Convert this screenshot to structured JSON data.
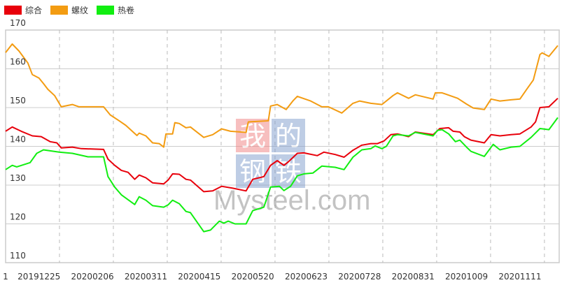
{
  "chart_data": {
    "type": "line",
    "title": "",
    "xlabel": "",
    "ylabel": "",
    "ylim": [
      110,
      170
    ],
    "yticks": [
      110,
      120,
      130,
      140,
      150,
      160,
      170
    ],
    "xlim": [
      0,
      248
    ],
    "xtick_labels": [
      {
        "x": 0,
        "label": "1"
      },
      {
        "x": 15,
        "label": "20191225"
      },
      {
        "x": 39,
        "label": "20200206"
      },
      {
        "x": 63,
        "label": "20200311"
      },
      {
        "x": 87,
        "label": "20200415"
      },
      {
        "x": 111,
        "label": "20200520"
      },
      {
        "x": 135,
        "label": "20200623"
      },
      {
        "x": 159,
        "label": "20200728"
      },
      {
        "x": 183,
        "label": "20200831"
      },
      {
        "x": 207,
        "label": "20201009"
      },
      {
        "x": 231,
        "label": "20201111"
      }
    ],
    "grid": true,
    "legend_position": "top-left",
    "series": [
      {
        "name": "综合",
        "color": "#e8000b",
        "points": [
          [
            0,
            143.9
          ],
          [
            3,
            145.0
          ],
          [
            7,
            143.9
          ],
          [
            12,
            142.7
          ],
          [
            16,
            142.5
          ],
          [
            20,
            141.2
          ],
          [
            23,
            140.9
          ],
          [
            25,
            139.6
          ],
          [
            30,
            139.8
          ],
          [
            34,
            139.4
          ],
          [
            44,
            139.2
          ],
          [
            46,
            136.7
          ],
          [
            49,
            135.1
          ],
          [
            52,
            133.8
          ],
          [
            55,
            133.3
          ],
          [
            58,
            131.5
          ],
          [
            60,
            132.6
          ],
          [
            63,
            131.9
          ],
          [
            66,
            130.6
          ],
          [
            71,
            130.3
          ],
          [
            73,
            131.3
          ],
          [
            75,
            132.9
          ],
          [
            78,
            132.8
          ],
          [
            81,
            131.5
          ],
          [
            83,
            131.3
          ],
          [
            89,
            128.3
          ],
          [
            93,
            128.5
          ],
          [
            97,
            129.7
          ],
          [
            102,
            129.2
          ],
          [
            108,
            128.5
          ],
          [
            111,
            131.5
          ],
          [
            116,
            132.2
          ],
          [
            119,
            135.1
          ],
          [
            122,
            136.3
          ],
          [
            125,
            135.1
          ],
          [
            127,
            136.0
          ],
          [
            131,
            138.2
          ],
          [
            134,
            138.3
          ],
          [
            140,
            137.6
          ],
          [
            143,
            138.5
          ],
          [
            148,
            137.9
          ],
          [
            152,
            137.2
          ],
          [
            156,
            139.0
          ],
          [
            160,
            140.3
          ],
          [
            164,
            140.7
          ],
          [
            167,
            140.7
          ],
          [
            170,
            141.4
          ],
          [
            173,
            143.0
          ],
          [
            176,
            143.2
          ],
          [
            181,
            142.5
          ],
          [
            184,
            143.7
          ],
          [
            192,
            143.0
          ],
          [
            195,
            144.6
          ],
          [
            199,
            144.8
          ],
          [
            201,
            143.9
          ],
          [
            204,
            143.7
          ],
          [
            206,
            142.5
          ],
          [
            209,
            141.6
          ],
          [
            215,
            140.9
          ],
          [
            218,
            143.0
          ],
          [
            222,
            142.7
          ],
          [
            227,
            143.0
          ],
          [
            231,
            143.2
          ],
          [
            236,
            145.0
          ],
          [
            238,
            146.3
          ],
          [
            240,
            150.0
          ],
          [
            244,
            150.2
          ],
          [
            248,
            152.4
          ]
        ]
      },
      {
        "name": "螺纹",
        "color": "#f39c12",
        "points": [
          [
            0,
            164.2
          ],
          [
            3,
            166.4
          ],
          [
            6,
            164.6
          ],
          [
            10,
            161.5
          ],
          [
            12,
            158.5
          ],
          [
            15,
            157.6
          ],
          [
            17,
            156.2
          ],
          [
            19,
            154.7
          ],
          [
            22,
            153.1
          ],
          [
            25,
            150.2
          ],
          [
            30,
            150.8
          ],
          [
            33,
            150.2
          ],
          [
            44,
            150.2
          ],
          [
            47,
            148.1
          ],
          [
            51,
            146.6
          ],
          [
            54,
            145.4
          ],
          [
            59,
            142.8
          ],
          [
            60,
            143.4
          ],
          [
            63,
            142.7
          ],
          [
            66,
            140.9
          ],
          [
            69,
            140.7
          ],
          [
            71,
            139.8
          ],
          [
            72,
            143.2
          ],
          [
            75,
            143.2
          ],
          [
            76,
            146.1
          ],
          [
            78,
            145.9
          ],
          [
            81,
            144.8
          ],
          [
            83,
            145.0
          ],
          [
            89,
            142.3
          ],
          [
            93,
            143.0
          ],
          [
            97,
            144.5
          ],
          [
            101,
            143.9
          ],
          [
            108,
            143.6
          ],
          [
            109,
            146.3
          ],
          [
            118,
            146.6
          ],
          [
            119,
            150.4
          ],
          [
            122,
            150.8
          ],
          [
            126,
            149.5
          ],
          [
            129,
            151.7
          ],
          [
            131,
            152.9
          ],
          [
            137,
            151.7
          ],
          [
            142,
            150.2
          ],
          [
            145,
            150.2
          ],
          [
            151,
            148.6
          ],
          [
            156,
            151.1
          ],
          [
            159,
            151.7
          ],
          [
            164,
            151.1
          ],
          [
            169,
            150.8
          ],
          [
            174,
            153.1
          ],
          [
            176,
            153.8
          ],
          [
            181,
            152.4
          ],
          [
            184,
            153.3
          ],
          [
            192,
            152.2
          ],
          [
            193,
            153.8
          ],
          [
            196,
            153.8
          ],
          [
            203,
            152.4
          ],
          [
            207,
            150.9
          ],
          [
            210,
            149.9
          ],
          [
            215,
            149.5
          ],
          [
            218,
            152.2
          ],
          [
            222,
            151.7
          ],
          [
            227,
            152.0
          ],
          [
            231,
            152.2
          ],
          [
            234,
            154.7
          ],
          [
            237,
            157.1
          ],
          [
            240,
            163.7
          ],
          [
            241,
            164.1
          ],
          [
            244,
            163.2
          ],
          [
            248,
            166.0
          ]
        ]
      },
      {
        "name": "热卷",
        "color": "#11ee11",
        "points": [
          [
            0,
            134.0
          ],
          [
            3,
            135.1
          ],
          [
            5,
            134.7
          ],
          [
            11,
            135.8
          ],
          [
            14,
            138.2
          ],
          [
            17,
            139.1
          ],
          [
            24,
            138.5
          ],
          [
            30,
            138.2
          ],
          [
            37,
            137.3
          ],
          [
            44,
            137.3
          ],
          [
            46,
            132.2
          ],
          [
            49,
            129.5
          ],
          [
            52,
            127.5
          ],
          [
            58,
            125.0
          ],
          [
            60,
            127.0
          ],
          [
            63,
            126.1
          ],
          [
            66,
            124.7
          ],
          [
            71,
            124.3
          ],
          [
            73,
            124.9
          ],
          [
            75,
            126.1
          ],
          [
            78,
            125.2
          ],
          [
            81,
            123.2
          ],
          [
            83,
            122.9
          ],
          [
            89,
            118.0
          ],
          [
            92,
            118.4
          ],
          [
            96,
            120.7
          ],
          [
            98,
            120.2
          ],
          [
            100,
            120.7
          ],
          [
            103,
            120.0
          ],
          [
            108,
            120.0
          ],
          [
            111,
            123.4
          ],
          [
            116,
            124.3
          ],
          [
            119,
            129.5
          ],
          [
            123,
            129.7
          ],
          [
            125,
            128.6
          ],
          [
            128,
            129.7
          ],
          [
            131,
            132.4
          ],
          [
            134,
            132.9
          ],
          [
            138,
            133.1
          ],
          [
            142,
            134.9
          ],
          [
            148,
            134.6
          ],
          [
            152,
            134.0
          ],
          [
            156,
            137.2
          ],
          [
            160,
            139.1
          ],
          [
            164,
            139.4
          ],
          [
            166,
            140.1
          ],
          [
            169,
            139.4
          ],
          [
            171,
            140.0
          ],
          [
            174,
            142.7
          ],
          [
            176,
            143.0
          ],
          [
            181,
            142.7
          ],
          [
            184,
            143.6
          ],
          [
            192,
            142.7
          ],
          [
            194,
            144.1
          ],
          [
            196,
            144.3
          ],
          [
            199,
            143.2
          ],
          [
            202,
            141.2
          ],
          [
            204,
            141.6
          ],
          [
            207,
            139.8
          ],
          [
            209,
            138.7
          ],
          [
            215,
            137.4
          ],
          [
            219,
            140.5
          ],
          [
            222,
            139.1
          ],
          [
            227,
            139.8
          ],
          [
            231,
            140.0
          ],
          [
            236,
            142.3
          ],
          [
            240,
            144.6
          ],
          [
            244,
            144.3
          ],
          [
            248,
            147.4
          ]
        ]
      }
    ]
  },
  "watermark": {
    "cn_chars": [
      "我",
      "的",
      "钢",
      "铁"
    ],
    "en": "Mysteel.com"
  }
}
